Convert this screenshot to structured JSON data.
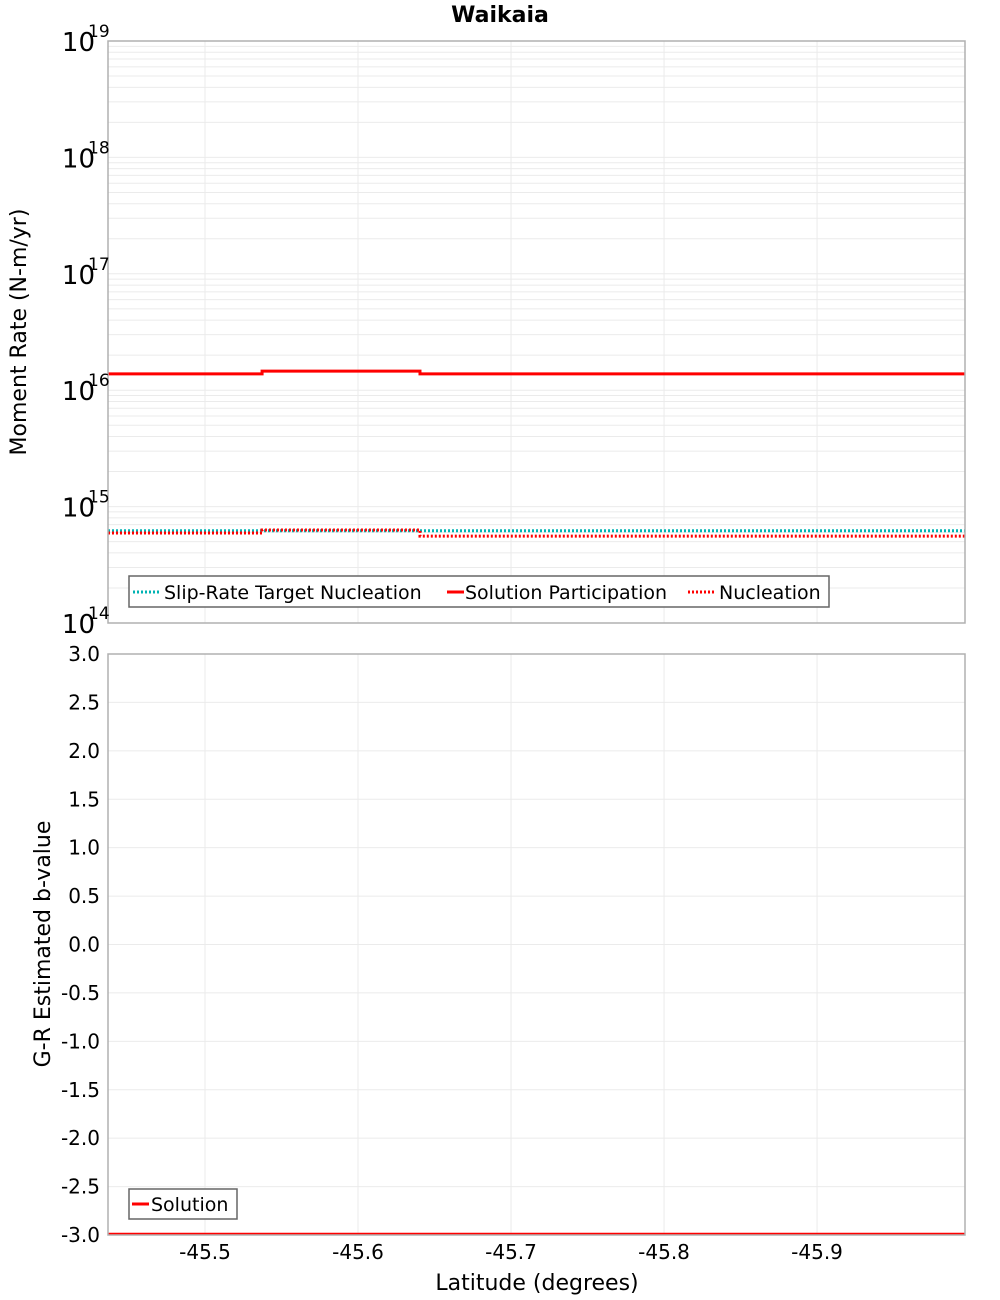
{
  "chart_data": [
    {
      "type": "line",
      "title": "Waikaia",
      "xlabel": "Latitude (degrees)",
      "ylabel": "Moment Rate (N-m/yr)",
      "yscale": "log",
      "ylim": [
        100000000000000.0,
        1e+19
      ],
      "xlim": [
        -45.4366,
        -45.9967
      ],
      "x_tick_labels": [
        "-45.5",
        "-45.6",
        "-45.7",
        "-45.8",
        "-45.9"
      ],
      "x_ticks": [
        -45.5,
        -45.6,
        -45.7,
        -45.8,
        -45.9
      ],
      "y_tick_labels": [
        {
          "base": "10",
          "exp": "19"
        },
        {
          "base": "10",
          "exp": "18"
        },
        {
          "base": "10",
          "exp": "17"
        },
        {
          "base": "10",
          "exp": "16"
        },
        {
          "base": "10",
          "exp": "15"
        },
        {
          "base": "10",
          "exp": "14"
        }
      ],
      "y_ticks": [
        1e+19,
        1e+18,
        1e+17,
        1e+16,
        1000000000000000.0,
        100000000000000.0
      ],
      "grid": true,
      "legend_position": "lower-left",
      "segment_edges": [
        -45.4366,
        -45.5373,
        -45.6405,
        -45.7529,
        -45.8745,
        -45.9967
      ],
      "series": [
        {
          "name": "Slip-Rate Target Nucleation",
          "style": "dotted",
          "color": "#00b3b3",
          "values": [
            620000000000000.0,
            620000000000000.0,
            620000000000000.0,
            620000000000000.0,
            620000000000000.0
          ]
        },
        {
          "name": "Solution Participation",
          "style": "solid",
          "color": "#ff0000",
          "values": [
            1.38e+16,
            1.46e+16,
            1.38e+16,
            1.38e+16,
            1.38e+16
          ]
        },
        {
          "name": "Nucleation",
          "style": "dotted",
          "color": "#ff0000",
          "values": [
            593000000000000.0,
            630000000000000.0,
            558000000000000.0,
            558000000000000.0,
            558000000000000.0
          ]
        }
      ]
    },
    {
      "type": "line",
      "title": "",
      "xlabel": "Latitude (degrees)",
      "ylabel": "G-R Estimated b-value",
      "yscale": "linear",
      "ylim": [
        -3.0,
        3.0
      ],
      "xlim": [
        -45.4366,
        -45.9967
      ],
      "x_tick_labels": [
        "-45.5",
        "-45.6",
        "-45.7",
        "-45.8",
        "-45.9"
      ],
      "x_ticks": [
        -45.5,
        -45.6,
        -45.7,
        -45.8,
        -45.9
      ],
      "y_tick_labels": [
        "3.0",
        "2.5",
        "2.0",
        "1.5",
        "1.0",
        "0.5",
        "0.0",
        "-0.5",
        "-1.0",
        "-1.5",
        "-2.0",
        "-2.5",
        "-3.0"
      ],
      "y_ticks": [
        3.0,
        2.5,
        2.0,
        1.5,
        1.0,
        0.5,
        0.0,
        -0.5,
        -1.0,
        -1.5,
        -2.0,
        -2.5,
        -3.0
      ],
      "grid": true,
      "legend_position": "lower-left",
      "segment_edges": [
        -45.4366,
        -45.5373,
        -45.6405,
        -45.7529,
        -45.8745,
        -45.9967
      ],
      "series": [
        {
          "name": "Solution",
          "style": "solid",
          "color": "#ff0000",
          "values": [
            -3.0,
            -3.0,
            -3.0,
            -3.0,
            -3.0
          ]
        }
      ]
    }
  ],
  "colors": {
    "target": "#00b3b3",
    "solution": "#ff0000",
    "grid": "#ebebeb",
    "frame": "#b0b0b0",
    "legend_border": "#666666"
  }
}
